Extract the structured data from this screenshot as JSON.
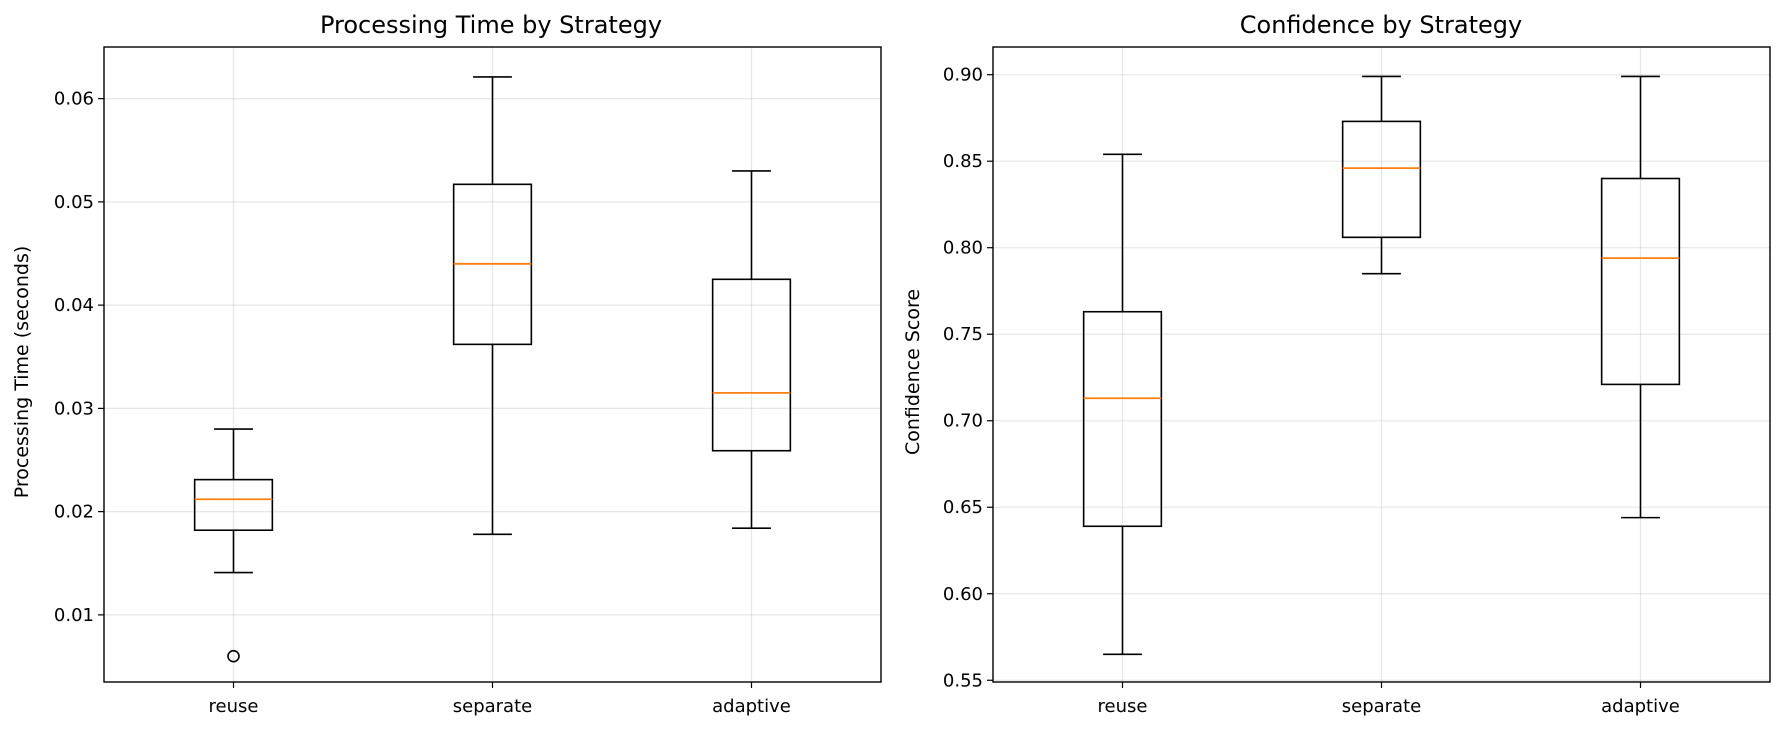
{
  "chart_data": [
    {
      "type": "box",
      "title": "Processing Time by Strategy",
      "xlabel": "",
      "ylabel": "Processing Time (seconds)",
      "ylim": [
        0.0035,
        0.065
      ],
      "yticks": [
        0.01,
        0.02,
        0.03,
        0.04,
        0.05,
        0.06
      ],
      "ytick_labels": [
        "0.01",
        "0.02",
        "0.03",
        "0.04",
        "0.05",
        "0.06"
      ],
      "categories": [
        "reuse",
        "separate",
        "adaptive"
      ],
      "grid": true,
      "boxes": [
        {
          "whisker_low": 0.0141,
          "q1": 0.0182,
          "median": 0.0212,
          "q3": 0.0231,
          "whisker_high": 0.028,
          "fliers": [
            0.006
          ]
        },
        {
          "whisker_low": 0.0178,
          "q1": 0.0362,
          "median": 0.044,
          "q3": 0.0517,
          "whisker_high": 0.0621,
          "fliers": []
        },
        {
          "whisker_low": 0.0184,
          "q1": 0.0259,
          "median": 0.0315,
          "q3": 0.0425,
          "whisker_high": 0.053,
          "fliers": []
        }
      ]
    },
    {
      "type": "box",
      "title": "Confidence by Strategy",
      "xlabel": "",
      "ylabel": "Confidence Score",
      "ylim": [
        0.549,
        0.916
      ],
      "yticks": [
        0.55,
        0.6,
        0.65,
        0.7,
        0.75,
        0.8,
        0.85,
        0.9
      ],
      "ytick_labels": [
        "0.55",
        "0.60",
        "0.65",
        "0.70",
        "0.75",
        "0.80",
        "0.85",
        "0.90"
      ],
      "categories": [
        "reuse",
        "separate",
        "adaptive"
      ],
      "grid": true,
      "boxes": [
        {
          "whisker_low": 0.565,
          "q1": 0.639,
          "median": 0.713,
          "q3": 0.763,
          "whisker_high": 0.854,
          "fliers": []
        },
        {
          "whisker_low": 0.785,
          "q1": 0.806,
          "median": 0.846,
          "q3": 0.873,
          "whisker_high": 0.899,
          "fliers": []
        },
        {
          "whisker_low": 0.644,
          "q1": 0.721,
          "median": 0.794,
          "q3": 0.84,
          "whisker_high": 0.899,
          "fliers": []
        }
      ]
    }
  ]
}
